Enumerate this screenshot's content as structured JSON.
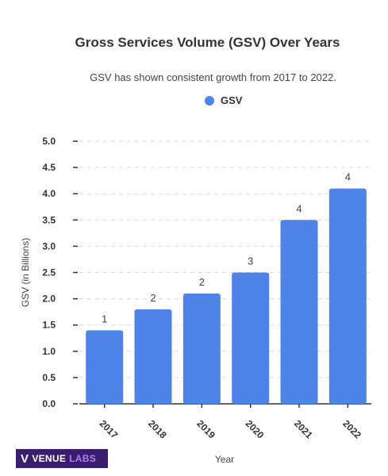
{
  "chart_data": {
    "type": "bar",
    "title": "Gross Services Volume (GSV) Over Years",
    "subtitle": "GSV has shown consistent growth from 2017 to 2022.",
    "xlabel": "Year",
    "ylabel": "GSV (in Billions)",
    "categories": [
      "2017",
      "2018",
      "2019",
      "2020",
      "2021",
      "2022"
    ],
    "series": [
      {
        "name": "GSV",
        "values": [
          1.4,
          1.8,
          2.1,
          2.5,
          3.5,
          4.1
        ],
        "data_labels": [
          "1",
          "2",
          "2",
          "3",
          "4",
          "4"
        ]
      }
    ],
    "ylim": [
      0,
      5.0
    ],
    "yticks": [
      "0.0",
      "0.5",
      "1.0",
      "1.5",
      "2.0",
      "2.5",
      "3.0",
      "3.5",
      "4.0",
      "4.5",
      "5.0"
    ],
    "grid": true,
    "legend_position": "top-center",
    "bar_color": "#4e84e8"
  },
  "branding": {
    "mark": "V",
    "text_part1": "VENUE",
    "text_part2": "LABS"
  }
}
